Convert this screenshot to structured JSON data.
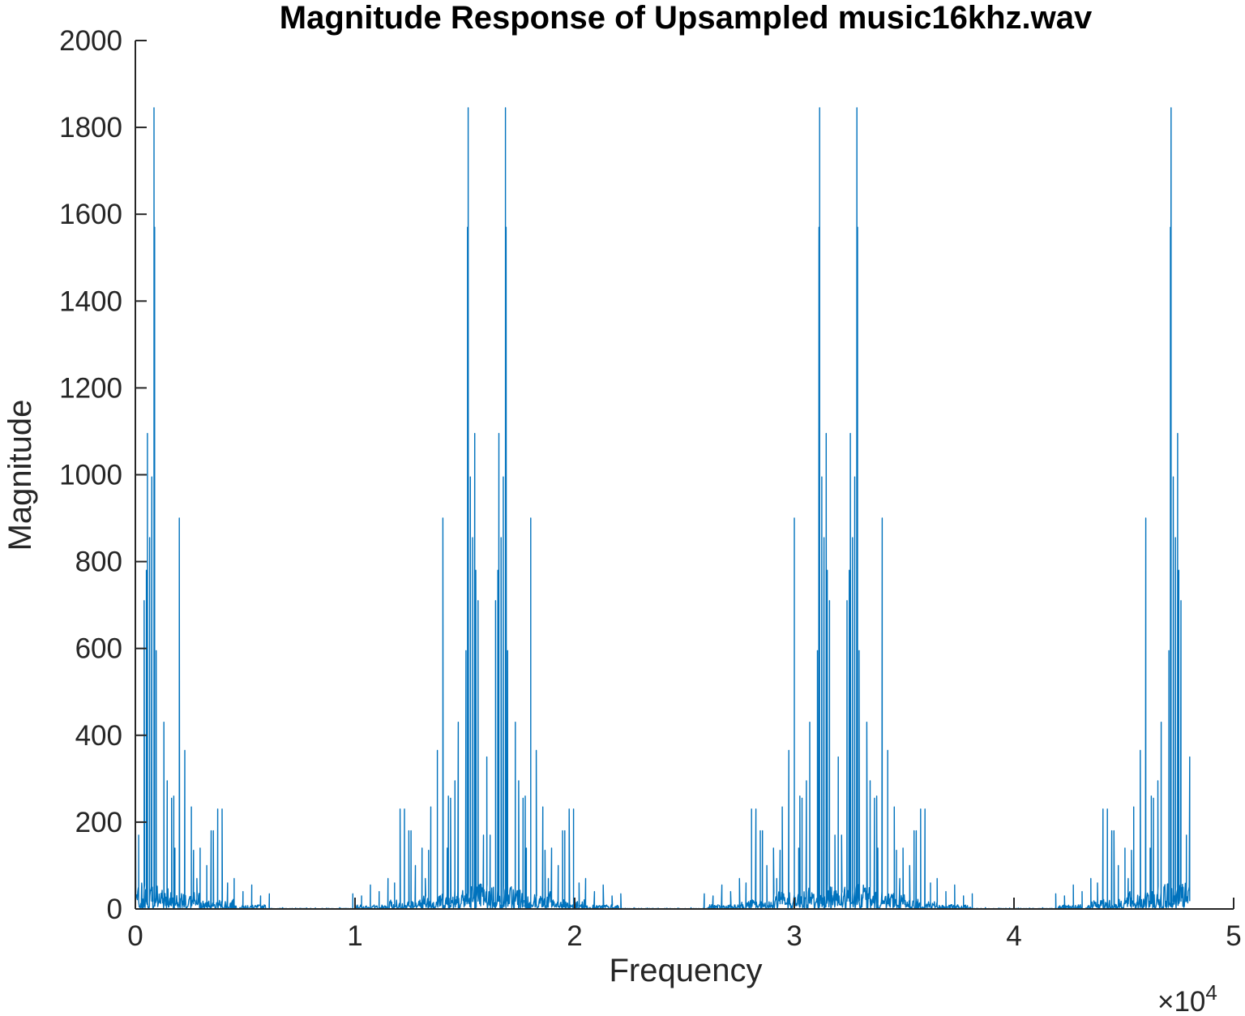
{
  "chart_data": {
    "type": "line",
    "title": "Magnitude Response of Upsampled music16khz.wav",
    "xlabel": "Frequency",
    "ylabel": "Magnitude",
    "xlim": [
      0,
      50000
    ],
    "ylim": [
      0,
      2000
    ],
    "x_ticks": [
      0,
      10000,
      20000,
      30000,
      40000,
      50000
    ],
    "x_tick_labels": [
      "0",
      "1",
      "2",
      "3",
      "4",
      "5"
    ],
    "x_exponent_label": "×10",
    "x_exponent_power": "4",
    "y_ticks": [
      0,
      200,
      400,
      600,
      800,
      1000,
      1200,
      1400,
      1600,
      1800,
      2000
    ],
    "y_tick_labels": [
      "0",
      "200",
      "400",
      "600",
      "800",
      "1000",
      "1200",
      "1400",
      "1600",
      "1800",
      "2000"
    ],
    "grid": false,
    "series_color": "#0072BD",
    "series": [
      {
        "x_range": [
          0,
          48000
        ],
        "symmetric_about": 24000,
        "repeat_period": 16000,
        "peaks": [
          [
            0,
            350
          ],
          [
            150,
            170
          ],
          [
            300,
            50
          ],
          [
            400,
            710
          ],
          [
            500,
            780
          ],
          [
            550,
            1095
          ],
          [
            650,
            855
          ],
          [
            750,
            995
          ],
          [
            850,
            1845
          ],
          [
            880,
            1570
          ],
          [
            950,
            595
          ],
          [
            1300,
            430
          ],
          [
            1450,
            295
          ],
          [
            1650,
            255
          ],
          [
            1750,
            260
          ],
          [
            1800,
            140
          ],
          [
            2000,
            900
          ],
          [
            2250,
            365
          ],
          [
            2550,
            235
          ],
          [
            2650,
            135
          ],
          [
            2800,
            70
          ],
          [
            2950,
            140
          ],
          [
            3250,
            100
          ],
          [
            3450,
            180
          ],
          [
            3550,
            180
          ],
          [
            3750,
            230
          ],
          [
            3950,
            230
          ],
          [
            4200,
            60
          ],
          [
            4500,
            70
          ],
          [
            4900,
            40
          ],
          [
            5300,
            55
          ],
          [
            5700,
            30
          ],
          [
            6100,
            35
          ],
          [
            6700,
            3
          ],
          [
            7300,
            2
          ],
          [
            7800,
            2
          ]
        ]
      }
    ]
  }
}
